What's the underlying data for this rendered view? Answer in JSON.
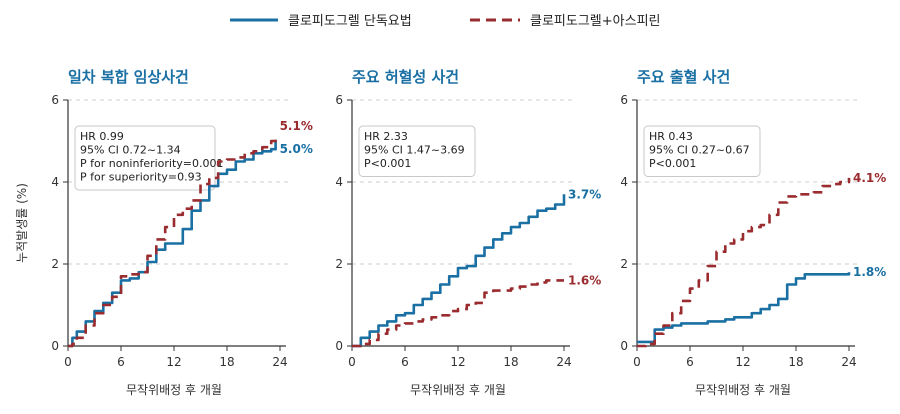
{
  "chart_data": {
    "type": "line",
    "legend": {
      "position": "top",
      "entries": [
        {
          "label": "클로피도그렐 단독요법",
          "color": "#1a6fa3",
          "dash": "solid"
        },
        {
          "label": "클로피도그렐+아스피린",
          "color": "#9a2b2e",
          "dash": "dashed"
        }
      ]
    },
    "ylabel": "누적발생률 (%)",
    "grid": "horizontal dashed",
    "panels": [
      {
        "title": "일차 복합 임상사건",
        "xlabel": "무작위배정 후 개월",
        "xlim": [
          0,
          24
        ],
        "ylim": [
          0,
          6
        ],
        "xticks": [
          0,
          6,
          12,
          18,
          24
        ],
        "yticks": [
          0,
          2,
          4,
          6
        ],
        "stats": [
          "HR 0.99",
          "95% CI 0.72~1.34",
          "P for noninferiority=0.001",
          "P for superiority=0.93"
        ],
        "series": [
          {
            "name": "클로피도그렐 단독요법",
            "end_label": "5.0%",
            "x": [
              0,
              0.5,
              1,
              2,
              3,
              4,
              5,
              6,
              7,
              8,
              9,
              10,
              11,
              12,
              13,
              14,
              15,
              16,
              17,
              18,
              19,
              20,
              21,
              22,
              23,
              23.5
            ],
            "y": [
              0,
              0.2,
              0.35,
              0.6,
              0.85,
              1.05,
              1.3,
              1.6,
              1.65,
              1.8,
              2.05,
              2.35,
              2.5,
              2.5,
              2.85,
              3.3,
              3.55,
              3.9,
              4.2,
              4.3,
              4.5,
              4.55,
              4.7,
              4.75,
              4.8,
              5.0
            ]
          },
          {
            "name": "클로피도그렐+아스피린",
            "end_label": "5.1%",
            "x": [
              0,
              0.5,
              1,
              2,
              3,
              4,
              5,
              6,
              7,
              8,
              9,
              10,
              11,
              12,
              13,
              14,
              15,
              16,
              17,
              18,
              19,
              20,
              21,
              22,
              23,
              23.5
            ],
            "y": [
              0,
              0.05,
              0.2,
              0.5,
              0.8,
              1.0,
              1.2,
              1.7,
              1.75,
              1.8,
              2.2,
              2.6,
              2.9,
              3.2,
              3.35,
              3.55,
              3.95,
              4.1,
              4.5,
              4.55,
              4.6,
              4.7,
              4.75,
              4.85,
              5.0,
              5.1
            ]
          }
        ]
      },
      {
        "title": "주요 허혈성 사건",
        "xlabel": "무작위배정 후 개월",
        "xlim": [
          0,
          24
        ],
        "ylim": [
          0,
          6
        ],
        "xticks": [
          0,
          6,
          12,
          18,
          24
        ],
        "yticks": [
          0,
          2,
          4,
          6
        ],
        "stats": [
          "HR 2.33",
          "95% CI 1.47~3.69",
          "P<0.001"
        ],
        "series": [
          {
            "name": "클로피도그렐 단독요법",
            "end_label": "3.7%",
            "x": [
              0,
              1,
              2,
              3,
              4,
              5,
              6,
              7,
              8,
              9,
              10,
              11,
              12,
              13,
              14,
              15,
              16,
              17,
              18,
              19,
              20,
              21,
              22,
              23,
              24
            ],
            "y": [
              0,
              0.2,
              0.35,
              0.5,
              0.6,
              0.75,
              0.8,
              1.0,
              1.15,
              1.3,
              1.5,
              1.7,
              1.9,
              1.95,
              2.2,
              2.4,
              2.6,
              2.75,
              2.9,
              3.0,
              3.15,
              3.3,
              3.35,
              3.45,
              3.7
            ]
          },
          {
            "name": "클로피도그렐+아스피린",
            "end_label": "1.6%",
            "x": [
              0,
              1,
              2,
              3,
              4,
              5,
              6,
              7,
              8,
              9,
              10,
              11,
              12,
              13,
              14,
              15,
              16,
              17,
              18,
              19,
              20,
              21,
              22,
              23,
              24
            ],
            "y": [
              0,
              0.05,
              0.15,
              0.3,
              0.4,
              0.5,
              0.55,
              0.6,
              0.65,
              0.7,
              0.75,
              0.85,
              0.9,
              1.0,
              1.05,
              1.3,
              1.35,
              1.35,
              1.4,
              1.45,
              1.5,
              1.55,
              1.6,
              1.6,
              1.6
            ]
          }
        ]
      },
      {
        "title": "주요 출혈 사건",
        "xlabel": "무작위배정 후 개월",
        "xlim": [
          0,
          24
        ],
        "ylim": [
          0,
          6
        ],
        "xticks": [
          0,
          6,
          12,
          18,
          24
        ],
        "yticks": [
          0,
          2,
          4,
          6
        ],
        "stats": [
          "HR 0.43",
          "95% CI 0.27~0.67",
          "P<0.001"
        ],
        "series": [
          {
            "name": "클로피도그렐 단독요법",
            "end_label": "1.8%",
            "x": [
              0,
              1,
              2,
              3,
              4,
              5,
              6,
              7,
              8,
              9,
              10,
              11,
              12,
              13,
              14,
              15,
              16,
              17,
              18,
              19,
              20,
              21,
              22,
              23,
              24
            ],
            "y": [
              0.1,
              0.1,
              0.4,
              0.45,
              0.5,
              0.55,
              0.55,
              0.55,
              0.6,
              0.6,
              0.65,
              0.7,
              0.7,
              0.8,
              0.9,
              1.0,
              1.15,
              1.5,
              1.65,
              1.75,
              1.75,
              1.75,
              1.75,
              1.75,
              1.8
            ]
          },
          {
            "name": "클로피도그렐+아스피린",
            "end_label": "4.1%",
            "x": [
              0,
              1,
              2,
              3,
              4,
              5,
              6,
              7,
              8,
              9,
              10,
              11,
              12,
              13,
              14,
              15,
              16,
              17,
              18,
              19,
              20,
              21,
              22,
              23,
              24
            ],
            "y": [
              0,
              0.05,
              0.3,
              0.5,
              0.8,
              1.1,
              1.4,
              1.6,
              1.95,
              2.3,
              2.5,
              2.6,
              2.8,
              2.9,
              2.95,
              3.2,
              3.5,
              3.65,
              3.7,
              3.7,
              3.75,
              3.9,
              3.95,
              4.0,
              4.1
            ]
          }
        ]
      }
    ]
  }
}
